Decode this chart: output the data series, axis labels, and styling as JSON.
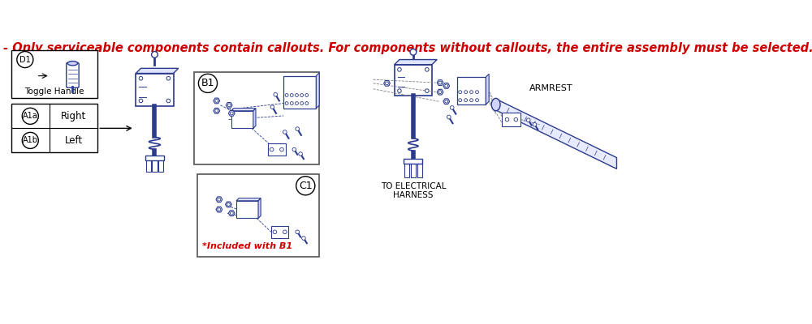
{
  "title_text": "- Only serviceable components contain callouts. For components without callouts, the entire assembly must be selected.",
  "title_color": "#cc0000",
  "title_fontsize": 10.5,
  "background_color": "#ffffff",
  "part_color": "#2a3a8c",
  "label_A1a": "A1a",
  "label_A1b": "A1b",
  "label_right": "Right",
  "label_left": "Left",
  "label_D1": "D1",
  "label_toggle": "Toggle Handle",
  "label_B1": "B1",
  "label_C1": "C1",
  "label_included": "*Included with B1",
  "label_electrical": "TO ELECTRICAL\nHARNESS",
  "label_armrest": "ARMREST",
  "note_color": "#cc0000"
}
